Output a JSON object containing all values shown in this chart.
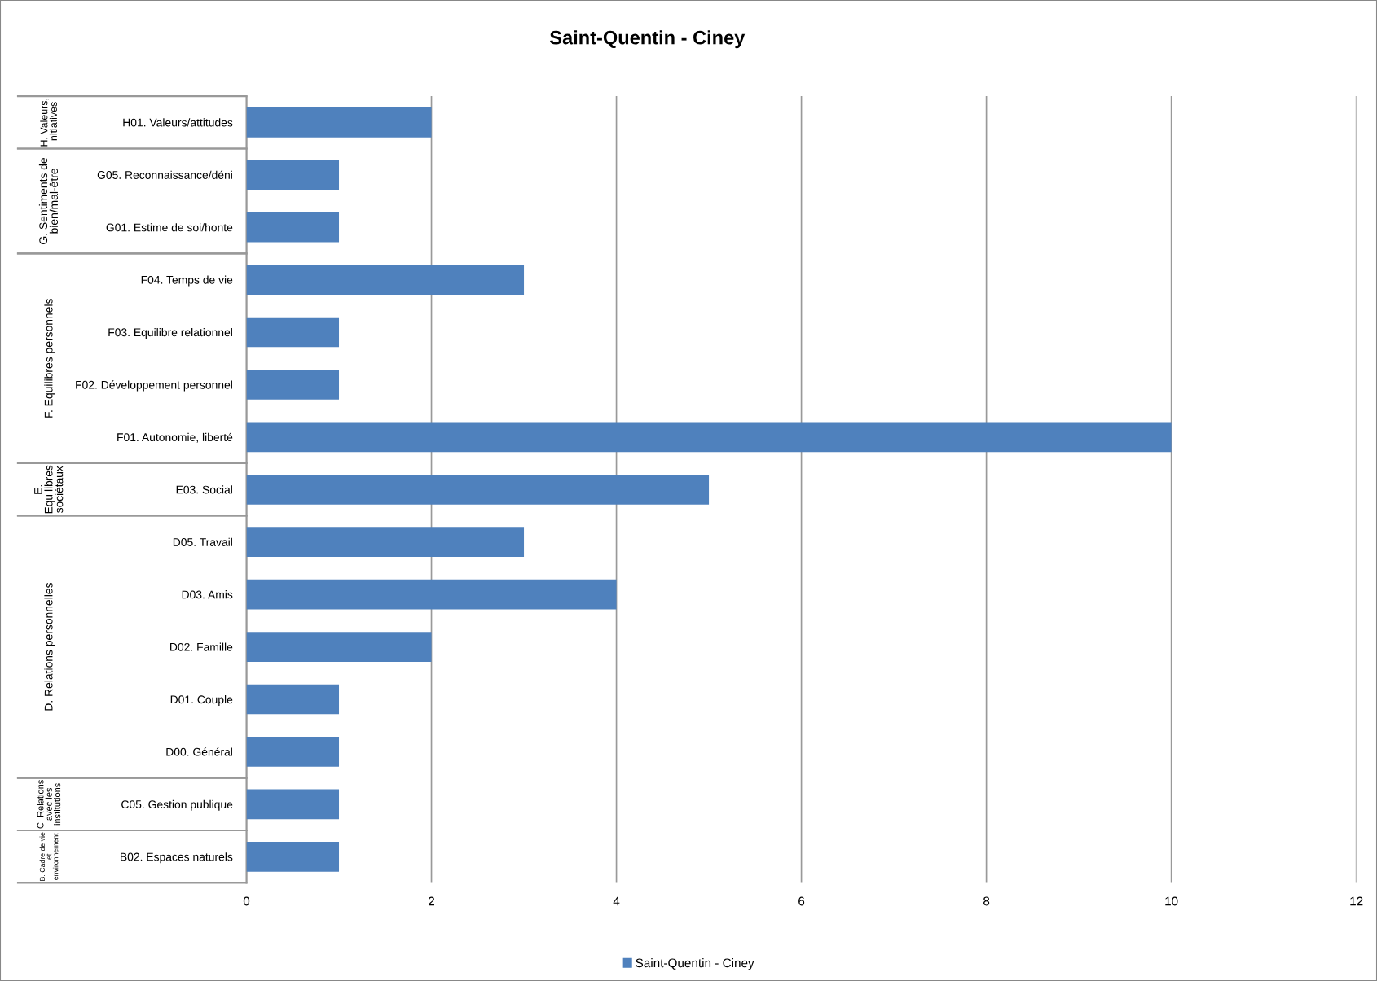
{
  "chart_data": {
    "type": "bar",
    "orientation": "horizontal",
    "title": "Saint-Quentin - Ciney",
    "categories": [
      "H01. Valeurs/attitudes",
      "G05. Reconnaissance/déni",
      "G01. Estime de soi/honte",
      "F04. Temps de vie",
      "F03. Equilibre relationnel",
      "F02. Développement personnel",
      "F01. Autonomie, liberté",
      "E03. Social",
      "D05. Travail",
      "D03. Amis",
      "D02. Famille",
      "D01. Couple",
      "D00. Général",
      "C05. Gestion publique",
      "B02. Espaces naturels"
    ],
    "series": [
      {
        "name": "Saint-Quentin - Ciney",
        "color": "#4f81bd",
        "values": [
          2,
          1,
          1,
          3,
          1,
          1,
          10,
          5,
          3,
          4,
          2,
          1,
          1,
          1,
          1
        ]
      }
    ],
    "xlim": [
      0,
      12
    ],
    "xticks": [
      0,
      2,
      4,
      6,
      8,
      10,
      12
    ],
    "grid": "x",
    "legend": "bottom",
    "annotations": [
      "H. Valeurs,\ninitiatives",
      "G. Sentiments de\nbien/mal-être",
      "F. Equilibres personnels",
      "E.\nEquilibres\nsociétaux",
      "D. Relations personnelles",
      "C. Relations\navec les\ninstitutions",
      "B. Cadre de vie\net\nenvironnement"
    ]
  }
}
